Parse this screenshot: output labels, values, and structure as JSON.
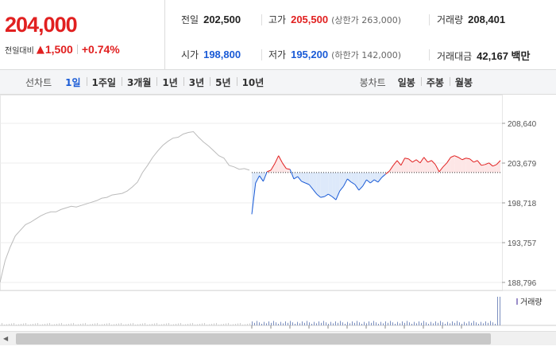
{
  "summary": {
    "current_price": "204,000",
    "change_label": "전일대비",
    "change_value": "1,500",
    "change_pct": "+0.74%"
  },
  "stats": {
    "prev_close": {
      "label": "전일",
      "value": "202,500"
    },
    "high": {
      "label": "고가",
      "value": "205,500",
      "sub": "(상한가 263,000)"
    },
    "volume": {
      "label": "거래량",
      "value": "208,401"
    },
    "open": {
      "label": "시가",
      "value": "198,800"
    },
    "low": {
      "label": "저가",
      "value": "195,200",
      "sub": "(하한가 142,000)"
    },
    "amount": {
      "label": "거래대금",
      "value": "42,167 백만"
    }
  },
  "toolbar": {
    "line_label": "선차트",
    "line_periods": [
      "1일",
      "1주일",
      "3개월",
      "1년",
      "3년",
      "5년",
      "10년"
    ],
    "active_period": "1일",
    "candle_label": "봉차트",
    "candle_periods": [
      "일봉",
      "주봉",
      "월봉"
    ]
  },
  "colors": {
    "up": "#e12020",
    "down": "#1a5bd6",
    "prev_day_line": "#bbbbbb",
    "up_fill": "#fde6e6",
    "down_fill": "#dde9fa",
    "volume_bar": "#7b8fbf"
  },
  "chart_data": {
    "type": "line",
    "y_ticks": [
      "208,640",
      "203,679",
      "198,718",
      "193,757",
      "188,796"
    ],
    "ylim": [
      188796,
      208640
    ],
    "base_line": 202500,
    "volume_legend": "거래량",
    "prev_day_series": [
      188796,
      191500,
      193200,
      194600,
      195300,
      196000,
      196300,
      196700,
      197100,
      197400,
      197600,
      197600,
      197900,
      198100,
      198300,
      198200,
      198400,
      198600,
      198800,
      199000,
      199300,
      199400,
      199700,
      199800,
      199900,
      200200,
      200700,
      201300,
      202500,
      203400,
      204400,
      205200,
      205900,
      206400,
      206800,
      206900,
      207300,
      207500,
      207600,
      206900,
      206300,
      205800,
      205200,
      204600,
      204300,
      203400,
      203200,
      202900,
      203000,
      202800
    ],
    "today_series": [
      197300,
      201200,
      202100,
      201400,
      202600,
      202800,
      203600,
      204600,
      203700,
      203000,
      202900,
      201700,
      202000,
      201400,
      201200,
      201000,
      200400,
      199800,
      199400,
      199500,
      199800,
      199500,
      199100,
      200200,
      200800,
      201700,
      201300,
      201000,
      200300,
      200800,
      201600,
      201200,
      201600,
      201300,
      201900,
      202300,
      202700,
      203400,
      204000,
      203400,
      204300,
      204200,
      203800,
      204100,
      203700,
      204400,
      203800,
      204000,
      203500,
      202600,
      203200,
      203700,
      204400,
      204600,
      204400,
      204100,
      204300,
      204200,
      203800,
      204000,
      203400,
      203500,
      203700,
      203300,
      203500,
      204000
    ]
  }
}
